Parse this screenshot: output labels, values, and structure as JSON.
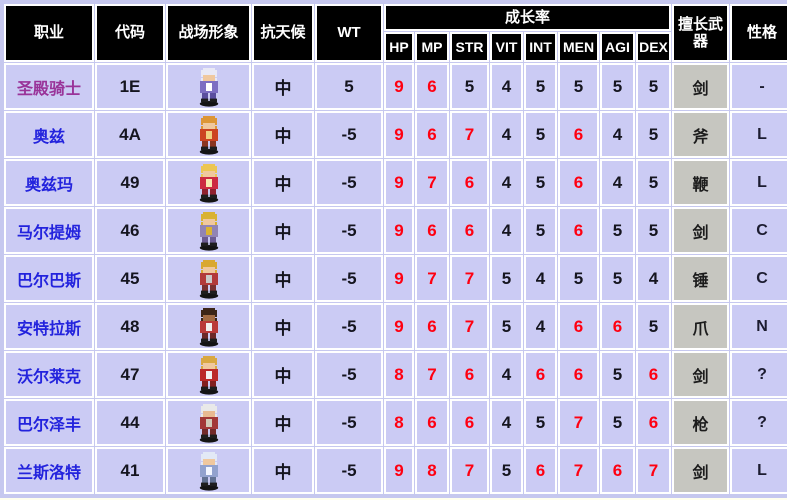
{
  "page": {
    "background": "#ffffee"
  },
  "colors": {
    "red_stat": "#ff0011",
    "dark_stat": "#15151f",
    "link_blue": "#2323dd",
    "link_visited_purple": "#993399",
    "cell_bg": "#cbcbf4",
    "weapon_cell_bg": "#c6c6c0",
    "header_bg": "#000000",
    "header_fg": "#ffffff",
    "grid_bg": "#c6c8ef",
    "page_bg": "#ffffee"
  },
  "table": {
    "header": {
      "job": "职业",
      "code": "代码",
      "sprite": "战场形象",
      "weather": "抗天候",
      "wt": "WT",
      "growth": "成长率",
      "stats": [
        "HP",
        "MP",
        "STR",
        "VIT",
        "INT",
        "MEN",
        "AGI",
        "DEX"
      ],
      "weapon": "擅长武器",
      "personality": "性格"
    },
    "growth_red_min": 6,
    "rows": [
      {
        "job": "圣殿骑士",
        "visited": true,
        "code": "1E",
        "weather": "中",
        "wt": "5",
        "growth": [
          9,
          6,
          5,
          4,
          5,
          5,
          5,
          5
        ],
        "weapon": "剑",
        "personality": "-",
        "sprite": {
          "name": "templar-knight-sprite",
          "hair": "#e9e9f6",
          "skin": "#f0c89e",
          "body": "#7d6ec2",
          "accent": "#ffffff",
          "legs": "#5a4e9e"
        }
      },
      {
        "job": "奥兹",
        "visited": false,
        "code": "4A",
        "weather": "中",
        "wt": "-5",
        "growth": [
          9,
          6,
          7,
          4,
          5,
          6,
          4,
          5
        ],
        "weapon": "斧",
        "personality": "L",
        "sprite": {
          "name": "oz-sprite",
          "hair": "#dd9636",
          "skin": "#f0c89e",
          "body": "#cc4422",
          "accent": "#f0d080",
          "legs": "#8a3520"
        }
      },
      {
        "job": "奥兹玛",
        "visited": false,
        "code": "49",
        "weather": "中",
        "wt": "-5",
        "growth": [
          9,
          7,
          6,
          4,
          5,
          6,
          4,
          5
        ],
        "weapon": "鞭",
        "personality": "L",
        "sprite": {
          "name": "ozma-sprite",
          "hair": "#ecc653",
          "skin": "#f0c89e",
          "body": "#cc2a42",
          "accent": "#f8e8b0",
          "legs": "#90212f"
        }
      },
      {
        "job": "马尔提姆",
        "visited": false,
        "code": "46",
        "weather": "中",
        "wt": "-5",
        "growth": [
          9,
          6,
          6,
          4,
          5,
          6,
          5,
          5
        ],
        "weapon": "剑",
        "personality": "C",
        "sprite": {
          "name": "martym-sprite",
          "hair": "#d9b232",
          "skin": "#f0c89e",
          "body": "#9184b4",
          "accent": "#d9b232",
          "legs": "#6c5c92"
        }
      },
      {
        "job": "巴尔巴斯",
        "visited": false,
        "code": "45",
        "weather": "中",
        "wt": "-5",
        "growth": [
          9,
          7,
          7,
          5,
          4,
          5,
          5,
          4
        ],
        "weapon": "锤",
        "personality": "C",
        "sprite": {
          "name": "barbas-sprite",
          "hair": "#d9a832",
          "skin": "#f0c89e",
          "body": "#b23a3a",
          "accent": "#c9c9c9",
          "legs": "#7a3030"
        }
      },
      {
        "job": "安特拉斯",
        "visited": false,
        "code": "48",
        "weather": "中",
        "wt": "-5",
        "growth": [
          9,
          6,
          7,
          5,
          4,
          6,
          6,
          5
        ],
        "weapon": "爪",
        "personality": "N",
        "sprite": {
          "name": "andoras-sprite",
          "hair": "#3c2618",
          "skin": "#a26c44",
          "body": "#ba3a3a",
          "accent": "#f0f0f0",
          "legs": "#6c2828"
        }
      },
      {
        "job": "沃尔莱克",
        "visited": false,
        "code": "47",
        "weather": "中",
        "wt": "-5",
        "growth": [
          8,
          7,
          6,
          4,
          6,
          6,
          5,
          6
        ],
        "weapon": "剑",
        "personality": "?",
        "sprite": {
          "name": "volac-sprite",
          "hair": "#d9a842",
          "skin": "#f0c89e",
          "body": "#bb2a2a",
          "accent": "#f2f2f2",
          "legs": "#822020"
        }
      },
      {
        "job": "巴尔泽丰",
        "visited": false,
        "code": "44",
        "weather": "中",
        "wt": "-5",
        "growth": [
          8,
          6,
          6,
          4,
          5,
          7,
          5,
          6
        ],
        "weapon": "枪",
        "personality": "?",
        "sprite": {
          "name": "balzepho-sprite",
          "hair": "#e9e9e9",
          "skin": "#e8ba92",
          "body": "#a23838",
          "accent": "#d2cab8",
          "legs": "#722a2a"
        }
      },
      {
        "job": "兰斯洛特",
        "visited": false,
        "code": "41",
        "weather": "中",
        "wt": "-5",
        "growth": [
          9,
          8,
          7,
          5,
          6,
          7,
          6,
          7
        ],
        "weapon": "剑",
        "personality": "L",
        "sprite": {
          "name": "lancelot-sprite",
          "hair": "#e2e9f6",
          "skin": "#f0c89e",
          "body": "#92a2ce",
          "accent": "#f2f6ff",
          "legs": "#627292"
        }
      }
    ]
  }
}
